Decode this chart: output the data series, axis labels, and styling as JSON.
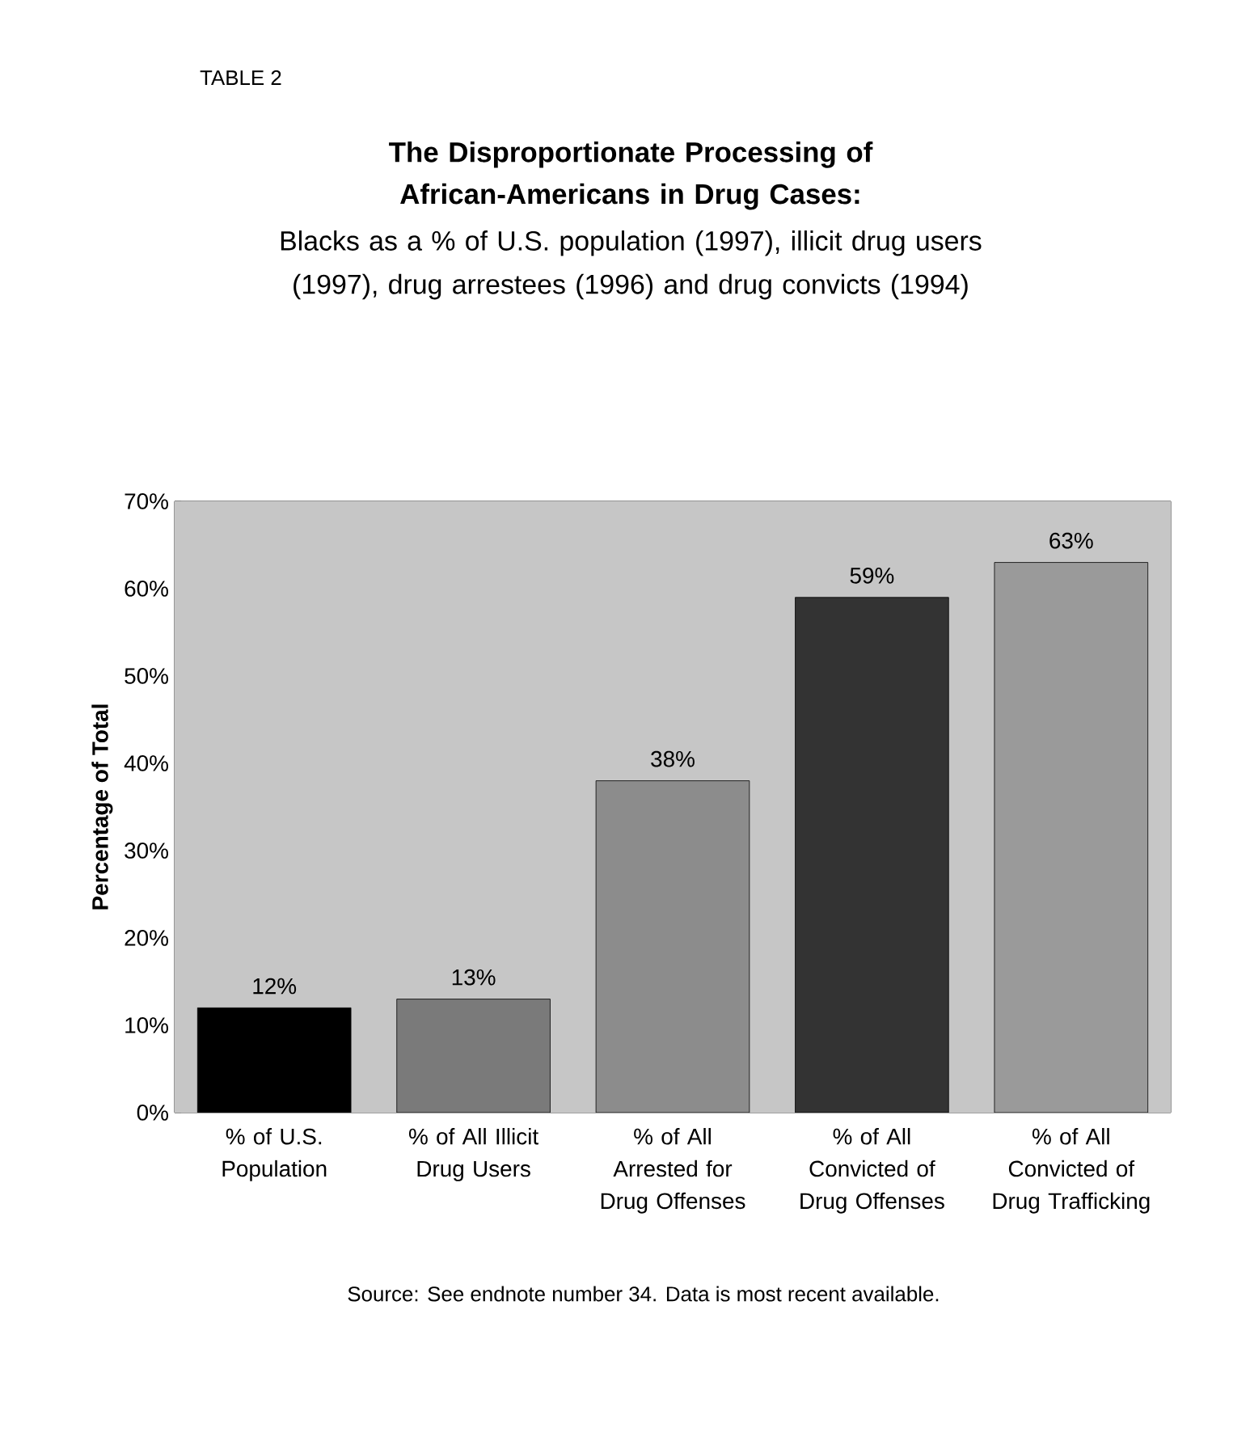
{
  "chart_data": {
    "type": "bar",
    "title": "The Disproportionate Processing of African-Americans in Drug Cases:",
    "subtitle": "Blacks as a % of U.S. population (1997), illicit drug users (1997), drug arrestees (1996) and drug convicts (1994)",
    "ylabel": "Percentage of Total",
    "categories": [
      "% of U.S. Population",
      "% of All Illicit Drug Users",
      "% of All Arrested for Drug Offenses",
      "% of All Convicted of Drug Offenses",
      "% of All Convicted of Drug Trafficking"
    ],
    "values": [
      12,
      13,
      38,
      59,
      63
    ],
    "value_labels": [
      "12%",
      "13%",
      "38%",
      "59%",
      "63%"
    ],
    "colors": [
      "#000000",
      "#7a7a7a",
      "#8c8c8c",
      "#333333",
      "#9a9a9a"
    ],
    "ylim": [
      0,
      70
    ],
    "yticks": [
      {
        "value": 0,
        "label": "0%"
      },
      {
        "value": 10,
        "label": "10%"
      },
      {
        "value": 20,
        "label": "20%"
      },
      {
        "value": 30,
        "label": "30%"
      },
      {
        "value": 40,
        "label": "40%"
      },
      {
        "value": 50,
        "label": "50%"
      },
      {
        "value": 60,
        "label": "60%"
      },
      {
        "value": 70,
        "label": "70%"
      }
    ],
    "grid": false,
    "annotations": [
      "TABLE 2",
      "Source: See endnote number 34. Data is most recent available."
    ]
  }
}
